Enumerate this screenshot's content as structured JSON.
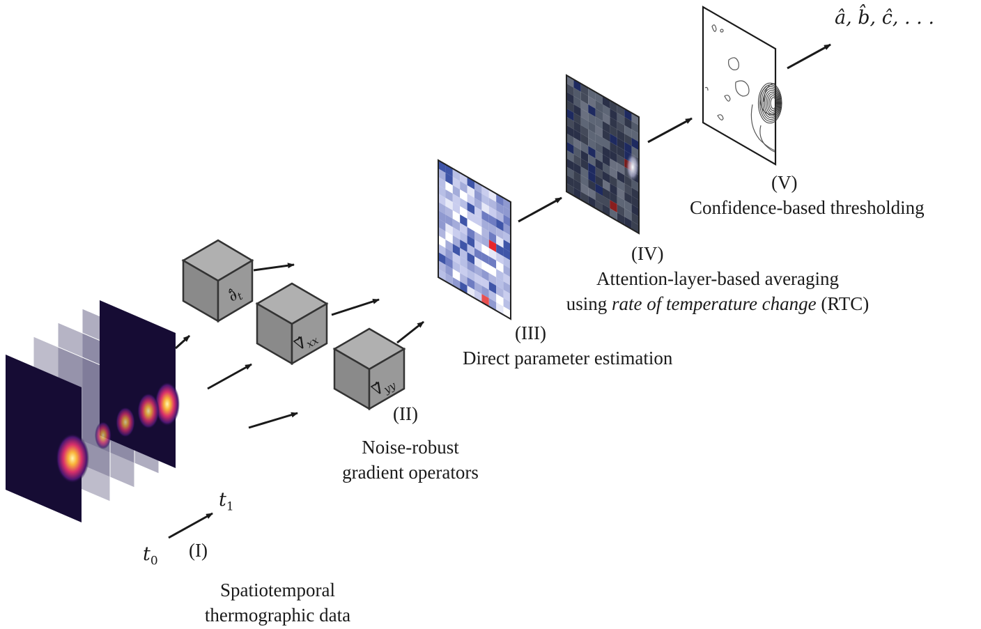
{
  "stage_I": {
    "numeral": "(I)",
    "t0": "t",
    "t0_sub": "0",
    "t1": "t",
    "t1_sub": "1",
    "caption_line1": "Spatiotemporal",
    "caption_line2": "thermographic data"
  },
  "stage_II": {
    "numeral": "(II)",
    "caption_line1": "Noise-robust",
    "caption_line2": "gradient operators",
    "operators": [
      {
        "symbol": "∂̂",
        "sub": "t"
      },
      {
        "symbol": "∇̂",
        "sub": "xx"
      },
      {
        "symbol": "∇̂",
        "sub": "yy"
      }
    ]
  },
  "stage_III": {
    "numeral": "(III)",
    "caption": "Direct parameter estimation"
  },
  "stage_IV": {
    "numeral": "(IV)",
    "caption_line1": "Attention-layer-based averaging",
    "caption_line2_pre": "using ",
    "caption_line2_italic": "rate of temperature change",
    "caption_line2_post": " (RTC)"
  },
  "stage_V": {
    "numeral": "(V)",
    "caption": "Confidence-based thresholding"
  },
  "output": {
    "params": "â, b̂, ĉ, . . ."
  },
  "colors": {
    "cube_fill": "#8f8f8f",
    "cube_stroke": "#333333",
    "arrow": "#1a1a1a",
    "thermo_dark": "#120a2e",
    "blue_grid": "#9ea6d6",
    "dark_grid": "#3a4050"
  }
}
